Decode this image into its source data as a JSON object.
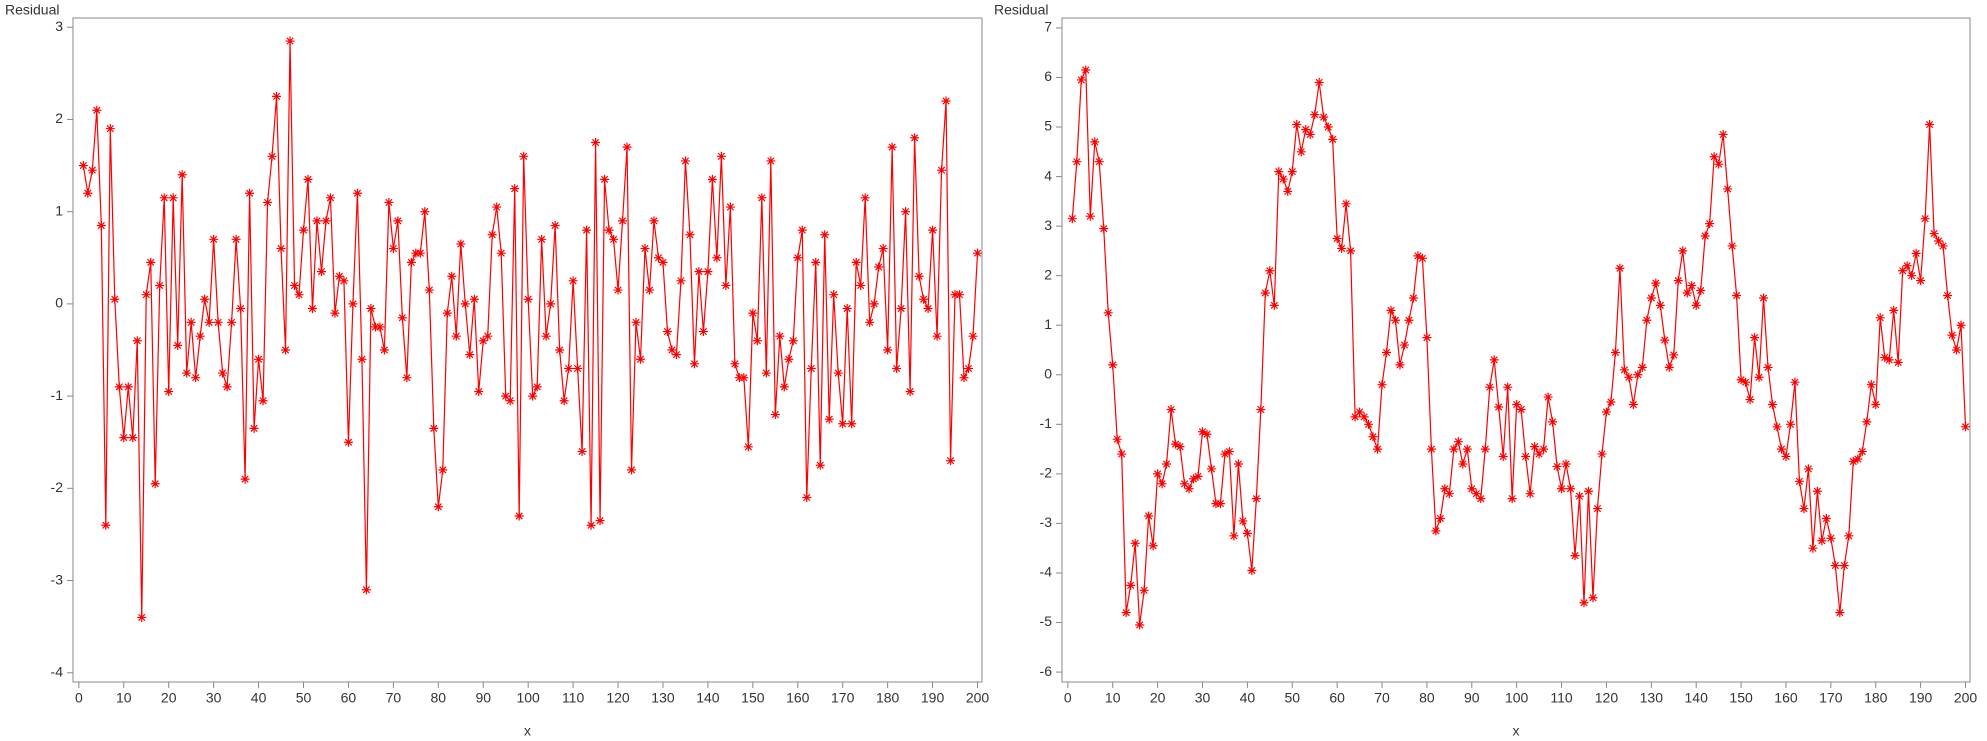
{
  "chart_data": [
    {
      "type": "line",
      "y_label": "Residual",
      "x_label": "x",
      "color": "#ff0000",
      "xlim": [
        -1.3,
        201
      ],
      "ylim": [
        -4.1,
        3.1
      ],
      "xticks": [
        0,
        10,
        20,
        30,
        40,
        50,
        60,
        70,
        80,
        90,
        100,
        110,
        120,
        130,
        140,
        150,
        160,
        170,
        180,
        190,
        200
      ],
      "yticks": [
        -4,
        -3,
        -2,
        -1,
        0,
        1,
        2,
        3
      ],
      "x": [
        1,
        2,
        3,
        4,
        5,
        6,
        7,
        8,
        9,
        10,
        11,
        12,
        13,
        14,
        15,
        16,
        17,
        18,
        19,
        20,
        21,
        22,
        23,
        24,
        25,
        26,
        27,
        28,
        29,
        30,
        31,
        32,
        33,
        34,
        35,
        36,
        37,
        38,
        39,
        40,
        41,
        42,
        43,
        44,
        45,
        46,
        47,
        48,
        49,
        50,
        51,
        52,
        53,
        54,
        55,
        56,
        57,
        58,
        59,
        60,
        61,
        62,
        63,
        64,
        65,
        66,
        67,
        68,
        69,
        70,
        71,
        72,
        73,
        74,
        75,
        76,
        77,
        78,
        79,
        80,
        81,
        82,
        83,
        84,
        85,
        86,
        87,
        88,
        89,
        90,
        91,
        92,
        93,
        94,
        95,
        96,
        97,
        98,
        99,
        100,
        101,
        102,
        103,
        104,
        105,
        106,
        107,
        108,
        109,
        110,
        111,
        112,
        113,
        114,
        115,
        116,
        117,
        118,
        119,
        120,
        121,
        122,
        123,
        124,
        125,
        126,
        127,
        128,
        129,
        130,
        131,
        132,
        133,
        134,
        135,
        136,
        137,
        138,
        139,
        140,
        141,
        142,
        143,
        144,
        145,
        146,
        147,
        148,
        149,
        150,
        151,
        152,
        153,
        154,
        155,
        156,
        157,
        158,
        159,
        160,
        161,
        162,
        163,
        164,
        165,
        166,
        167,
        168,
        169,
        170,
        171,
        172,
        173,
        174,
        175,
        176,
        177,
        178,
        179,
        180,
        181,
        182,
        183,
        184,
        185,
        186,
        187,
        188,
        189,
        190,
        191,
        192,
        193,
        194,
        195,
        196,
        197,
        198,
        199,
        200
      ],
      "values": [
        1.5,
        1.2,
        1.45,
        2.1,
        0.85,
        -2.4,
        1.9,
        0.05,
        -0.9,
        -1.45,
        -0.9,
        -1.45,
        -0.4,
        -3.4,
        0.1,
        0.45,
        -1.95,
        0.2,
        1.15,
        -0.95,
        1.15,
        -0.45,
        1.4,
        -0.75,
        -0.2,
        -0.8,
        -0.35,
        0.05,
        -0.2,
        0.7,
        -0.2,
        -0.75,
        -0.9,
        -0.2,
        0.7,
        -0.05,
        -1.9,
        1.2,
        -1.35,
        -0.6,
        -1.05,
        1.1,
        1.6,
        2.25,
        0.6,
        -0.5,
        2.85,
        0.2,
        0.1,
        0.8,
        1.35,
        -0.05,
        0.9,
        0.35,
        0.9,
        1.15,
        -0.1,
        0.3,
        0.25,
        -1.5,
        0.0,
        1.2,
        -0.6,
        -3.1,
        -0.05,
        -0.25,
        -0.25,
        -0.5,
        1.1,
        0.6,
        0.9,
        -0.15,
        -0.8,
        0.45,
        0.55,
        0.55,
        1.0,
        0.15,
        -1.35,
        -2.2,
        -1.8,
        -0.1,
        0.3,
        -0.35,
        0.65,
        0.0,
        -0.55,
        0.05,
        -0.95,
        -0.4,
        -0.35,
        0.75,
        1.05,
        0.55,
        -1.0,
        -1.05,
        1.25,
        -2.3,
        1.6,
        0.05,
        -1.0,
        -0.9,
        0.7,
        -0.35,
        0.0,
        0.85,
        -0.5,
        -1.05,
        -0.7,
        0.25,
        -0.7,
        -1.6,
        0.8,
        -2.4,
        1.75,
        -2.35,
        1.35,
        0.8,
        0.7,
        0.15,
        0.9,
        1.7,
        -1.8,
        -0.2,
        -0.6,
        0.6,
        0.15,
        0.9,
        0.5,
        0.45,
        -0.3,
        -0.5,
        -0.55,
        0.25,
        1.55,
        0.75,
        -0.65,
        0.35,
        -0.3,
        0.35,
        1.35,
        0.5,
        1.6,
        0.2,
        1.05,
        -0.65,
        -0.8,
        -0.8,
        -1.55,
        -0.1,
        -0.4,
        1.15,
        -0.75,
        1.55,
        -1.2,
        -0.35,
        -0.9,
        -0.6,
        -0.4,
        0.5,
        0.8,
        -2.1,
        -0.7,
        0.45,
        -1.75,
        0.75,
        -1.25,
        0.1,
        -0.75,
        -1.3,
        -0.05,
        -1.3,
        0.45,
        0.2,
        1.15,
        -0.2,
        0.0,
        0.4,
        0.6,
        -0.5,
        1.7,
        -0.7,
        -0.05,
        1.0,
        -0.95,
        1.8,
        0.3,
        0.05,
        -0.05,
        0.8,
        -0.35,
        1.45,
        2.2,
        -1.7,
        0.1,
        0.1,
        -0.8,
        -0.7,
        -0.35,
        0.55
      ]
    },
    {
      "type": "line",
      "y_label": "Residual",
      "x_label": "x",
      "color": "#ff0000",
      "xlim": [
        -1.3,
        201
      ],
      "ylim": [
        -6.2,
        7.2
      ],
      "xticks": [
        0,
        10,
        20,
        30,
        40,
        50,
        60,
        70,
        80,
        90,
        100,
        110,
        120,
        130,
        140,
        150,
        160,
        170,
        180,
        190,
        200
      ],
      "yticks": [
        -6,
        -5,
        -4,
        -3,
        -2,
        -1,
        0,
        1,
        2,
        3,
        4,
        5,
        6,
        7
      ],
      "x": [
        1,
        2,
        3,
        4,
        5,
        6,
        7,
        8,
        9,
        10,
        11,
        12,
        13,
        14,
        15,
        16,
        17,
        18,
        19,
        20,
        21,
        22,
        23,
        24,
        25,
        26,
        27,
        28,
        29,
        30,
        31,
        32,
        33,
        34,
        35,
        36,
        37,
        38,
        39,
        40,
        41,
        42,
        43,
        44,
        45,
        46,
        47,
        48,
        49,
        50,
        51,
        52,
        53,
        54,
        55,
        56,
        57,
        58,
        59,
        60,
        61,
        62,
        63,
        64,
        65,
        66,
        67,
        68,
        69,
        70,
        71,
        72,
        73,
        74,
        75,
        76,
        77,
        78,
        79,
        80,
        81,
        82,
        83,
        84,
        85,
        86,
        87,
        88,
        89,
        90,
        91,
        92,
        93,
        94,
        95,
        96,
        97,
        98,
        99,
        100,
        101,
        102,
        103,
        104,
        105,
        106,
        107,
        108,
        109,
        110,
        111,
        112,
        113,
        114,
        115,
        116,
        117,
        118,
        119,
        120,
        121,
        122,
        123,
        124,
        125,
        126,
        127,
        128,
        129,
        130,
        131,
        132,
        133,
        134,
        135,
        136,
        137,
        138,
        139,
        140,
        141,
        142,
        143,
        144,
        145,
        146,
        147,
        148,
        149,
        150,
        151,
        152,
        153,
        154,
        155,
        156,
        157,
        158,
        159,
        160,
        161,
        162,
        163,
        164,
        165,
        166,
        167,
        168,
        169,
        170,
        171,
        172,
        173,
        174,
        175,
        176,
        177,
        178,
        179,
        180,
        181,
        182,
        183,
        184,
        185,
        186,
        187,
        188,
        189,
        190,
        191,
        192,
        193,
        194,
        195,
        196,
        197,
        198,
        199,
        200
      ],
      "values": [
        3.15,
        4.3,
        5.95,
        6.15,
        3.2,
        4.7,
        4.3,
        2.95,
        1.25,
        0.2,
        -1.3,
        -1.6,
        -4.8,
        -4.25,
        -3.4,
        -5.05,
        -4.35,
        -2.85,
        -3.45,
        -2.0,
        -2.2,
        -1.8,
        -0.7,
        -1.4,
        -1.45,
        -2.2,
        -2.3,
        -2.1,
        -2.05,
        -1.15,
        -1.2,
        -1.9,
        -2.6,
        -2.6,
        -1.6,
        -1.55,
        -3.25,
        -1.8,
        -2.95,
        -3.2,
        -3.95,
        -2.5,
        -0.7,
        1.65,
        2.1,
        1.4,
        4.1,
        3.95,
        3.7,
        4.1,
        5.05,
        4.5,
        4.95,
        4.85,
        5.25,
        5.9,
        5.2,
        5.0,
        4.75,
        2.75,
        2.55,
        3.45,
        2.5,
        -0.85,
        -0.75,
        -0.85,
        -1.0,
        -1.25,
        -1.5,
        -0.2,
        0.45,
        1.3,
        1.1,
        0.2,
        0.6,
        1.1,
        1.55,
        2.4,
        2.35,
        0.75,
        -1.5,
        -3.15,
        -2.9,
        -2.3,
        -2.4,
        -1.5,
        -1.35,
        -1.8,
        -1.5,
        -2.3,
        -2.4,
        -2.5,
        -1.5,
        -0.25,
        0.3,
        -0.65,
        -1.65,
        -0.25,
        -2.5,
        -0.6,
        -0.7,
        -1.65,
        -2.4,
        -1.45,
        -1.6,
        -1.5,
        -0.45,
        -0.95,
        -1.85,
        -2.3,
        -1.8,
        -2.3,
        -3.65,
        -2.45,
        -4.6,
        -2.35,
        -4.5,
        -2.7,
        -1.6,
        -0.75,
        -0.55,
        0.45,
        2.15,
        0.1,
        -0.05,
        -0.6,
        0.0,
        0.15,
        1.1,
        1.55,
        1.85,
        1.4,
        0.7,
        0.15,
        0.4,
        1.9,
        2.5,
        1.65,
        1.8,
        1.4,
        1.7,
        2.8,
        3.05,
        4.4,
        4.25,
        4.85,
        3.75,
        2.6,
        1.6,
        -0.1,
        -0.15,
        -0.5,
        0.75,
        -0.05,
        1.55,
        0.15,
        -0.6,
        -1.05,
        -1.5,
        -1.65,
        -1.0,
        -0.15,
        -2.15,
        -2.7,
        -1.9,
        -3.5,
        -2.35,
        -3.35,
        -2.9,
        -3.3,
        -3.85,
        -4.8,
        -3.85,
        -3.25,
        -1.75,
        -1.7,
        -1.55,
        -0.95,
        -0.2,
        -0.6,
        1.15,
        0.35,
        0.3,
        1.3,
        0.25,
        2.1,
        2.2,
        2.0,
        2.45,
        1.9,
        3.15,
        5.05,
        2.85,
        2.7,
        2.6,
        1.6,
        0.8,
        0.5,
        1.0,
        -1.05
      ]
    }
  ]
}
